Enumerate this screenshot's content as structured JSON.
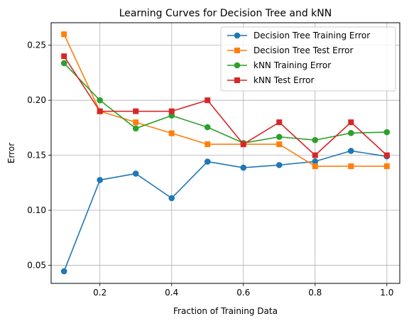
{
  "chart_data": {
    "type": "line",
    "title": "Learning Curves for Decision Tree and kNN",
    "xlabel": "Fraction of Training Data",
    "ylabel": "Error",
    "xlim": [
      0.064,
      1.036
    ],
    "ylim": [
      0.0335,
      0.2705
    ],
    "xticks": [
      0.2,
      0.4,
      0.6,
      0.8,
      1.0
    ],
    "xtick_labels": [
      "0.2",
      "0.4",
      "0.6",
      "0.8",
      "1.0"
    ],
    "yticks": [
      0.05,
      0.1,
      0.15,
      0.2,
      0.25
    ],
    "ytick_labels": [
      "0.05",
      "0.10",
      "0.15",
      "0.20",
      "0.25"
    ],
    "grid": true,
    "legend_position": "top-right",
    "x": [
      0.1,
      0.2,
      0.3,
      0.4,
      0.5,
      0.6,
      0.7,
      0.8,
      0.9,
      1.0
    ],
    "series": [
      {
        "name": "Decision Tree Training Error",
        "color": "#1f77b4",
        "marker": "circle",
        "values": [
          0.0445,
          0.1275,
          0.1333,
          0.111,
          0.1442,
          0.1387,
          0.1411,
          0.1444,
          0.154,
          0.149
        ]
      },
      {
        "name": "Decision Tree Test Error",
        "color": "#ff7f0e",
        "marker": "square",
        "values": [
          0.26,
          0.19,
          0.18,
          0.17,
          0.16,
          0.16,
          0.16,
          0.14,
          0.14,
          0.14
        ]
      },
      {
        "name": "kNN Training Error",
        "color": "#2ca02c",
        "marker": "circle",
        "values": [
          0.2337,
          0.2,
          0.1744,
          0.1861,
          0.1755,
          0.1611,
          0.1667,
          0.1638,
          0.1702,
          0.171
        ]
      },
      {
        "name": "kNN Test Error",
        "color": "#d62728",
        "marker": "square",
        "values": [
          0.24,
          0.19,
          0.19,
          0.19,
          0.2,
          0.16,
          0.18,
          0.15,
          0.18,
          0.15
        ]
      }
    ]
  }
}
